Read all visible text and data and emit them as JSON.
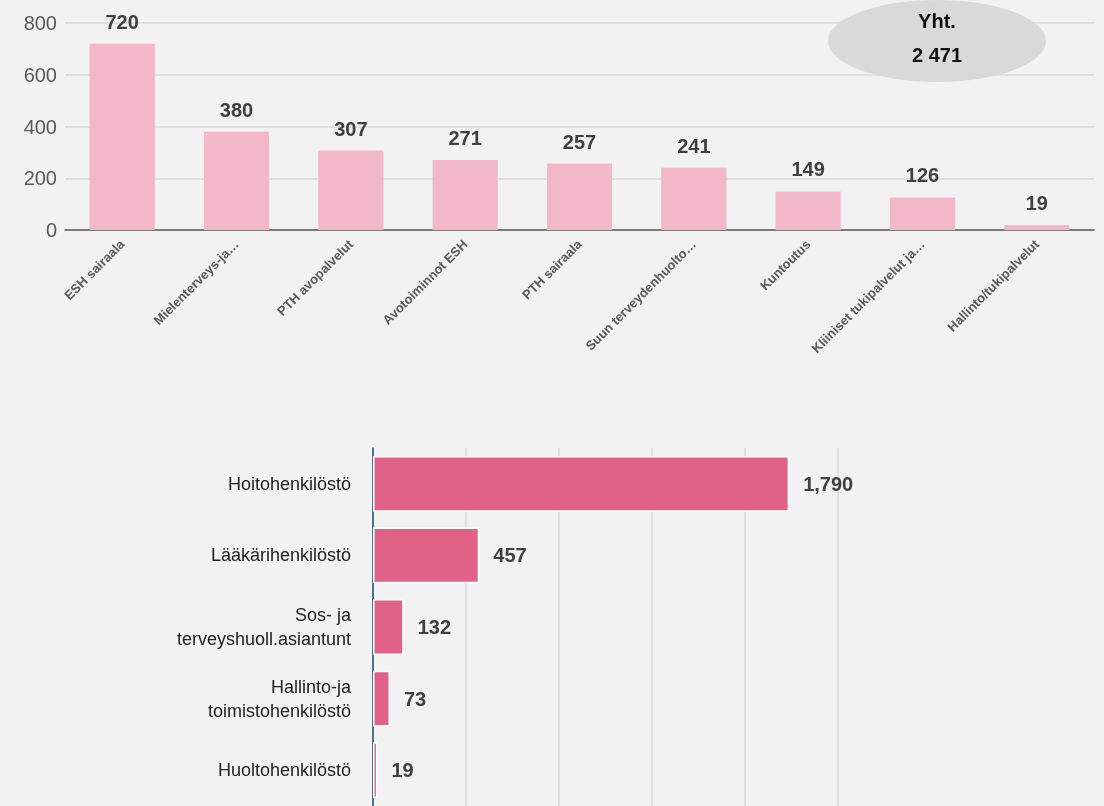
{
  "chart_data": [
    {
      "type": "bar",
      "categories": [
        "ESH sairaala",
        "Mielenterveys-ja…",
        "PTH avopalvelut",
        "Avotoiminnot ESH",
        "PTH sairaala",
        "Suun terveydenhuolto…",
        "Kuntoutus",
        "Kliiniset tukipalvelut ja…",
        "Hallinto/tukipalvelut"
      ],
      "values": [
        720,
        380,
        307,
        271,
        257,
        241,
        149,
        126,
        19
      ],
      "color": "#f2b8c8",
      "ylim": [
        0,
        800
      ],
      "yticks": [
        0,
        200,
        400,
        600,
        800
      ],
      "grid": true,
      "data_labels": true,
      "annotations": [
        "Yht.\n2 471"
      ]
    },
    {
      "type": "bar",
      "orientation": "horizontal",
      "categories": [
        "Hoitohenkilöstö",
        "Lääkärihenkilöstö",
        "Sos- ja\nterveyshuoll.asiantunt",
        "Hallinto-ja\ntoimistohenkilöstö",
        "Huoltohenkilöstö"
      ],
      "values": [
        1790,
        457,
        132,
        73,
        19
      ],
      "value_labels": [
        "1,790",
        "457",
        "132",
        "73",
        "19"
      ],
      "color": "#e06287",
      "xlim": [
        0,
        2000
      ],
      "xticks": [
        {
          "value": 0,
          "label": null
        },
        {
          "value": 400,
          "label": null
        },
        {
          "value": 800,
          "label": null
        },
        {
          "value": 1200,
          "label": null
        },
        {
          "value": 1600,
          "label": null
        },
        {
          "value": 2000,
          "label": null
        }
      ],
      "grid": "x",
      "tick_labels": "y"
    }
  ]
}
